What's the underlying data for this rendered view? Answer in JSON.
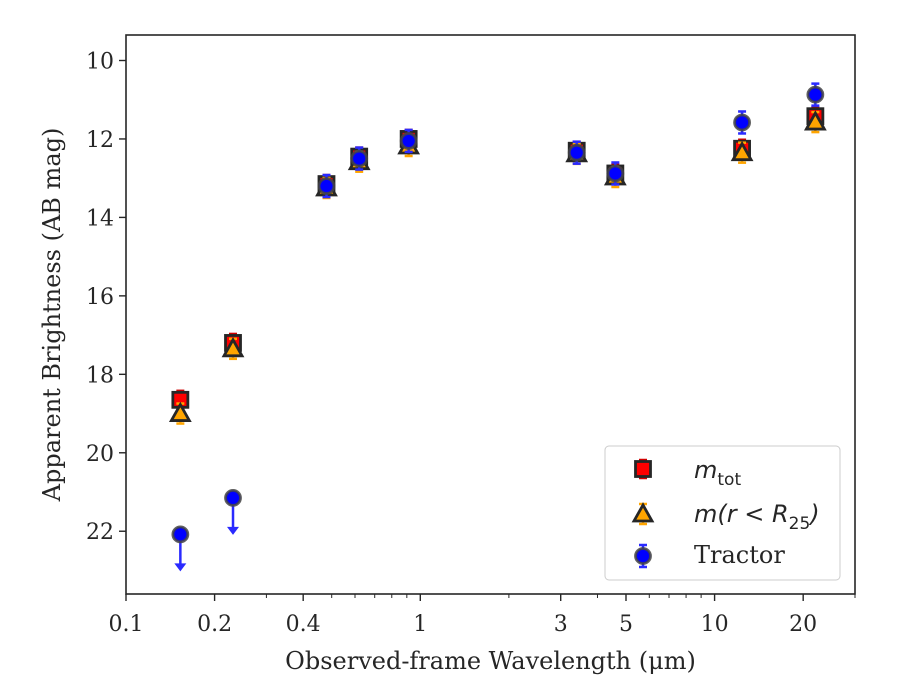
{
  "chart_data": {
    "type": "scatter",
    "xlabel": "Observed-frame Wavelength (μm)",
    "ylabel": "Apparent Brightness (AB mag)",
    "xscale": "log",
    "xlim": [
      0.1,
      30
    ],
    "ylim": [
      23.6,
      9.35
    ],
    "y_inverted": true,
    "x_ticks": [
      {
        "value": 0.1,
        "label": "0.1"
      },
      {
        "value": 0.2,
        "label": "0.2"
      },
      {
        "value": 0.4,
        "label": "0.4"
      },
      {
        "value": 1,
        "label": "1"
      },
      {
        "value": 3,
        "label": "3"
      },
      {
        "value": 5,
        "label": "5"
      },
      {
        "value": 10,
        "label": "10"
      },
      {
        "value": 20,
        "label": "20"
      }
    ],
    "x_minor_ticks": [
      0.3,
      0.5,
      0.6,
      0.7,
      0.8,
      0.9,
      2,
      4,
      6,
      7,
      8,
      9,
      30
    ],
    "y_ticks": [
      10,
      12,
      14,
      16,
      18,
      20,
      22
    ],
    "legend_position": "lower-right",
    "series": [
      {
        "name": "m_tot",
        "legend_label": {
          "main": "m",
          "sub": "tot"
        },
        "marker": "square",
        "color": "#ff0000",
        "errorbar_color": "#d00000",
        "x": [
          0.153,
          0.231,
          0.48,
          0.62,
          0.913,
          3.4,
          4.6,
          12.4,
          22.0
        ],
        "y": [
          18.65,
          17.2,
          13.15,
          12.45,
          12.0,
          12.3,
          12.88,
          12.25,
          11.42
        ]
      },
      {
        "name": "m(r<R25)",
        "legend_label": {
          "main": "m(r < R",
          "sub": "25",
          "tail": ")"
        },
        "marker": "triangle",
        "color": "#ffa500",
        "errorbar_color": "#ffa500",
        "x": [
          0.153,
          0.231,
          0.48,
          0.62,
          0.913,
          3.4,
          4.6,
          12.4,
          22.0
        ],
        "y": [
          19.0,
          17.35,
          13.25,
          12.58,
          12.18,
          12.38,
          12.97,
          12.35,
          11.57
        ]
      },
      {
        "name": "Tractor",
        "legend_label": {
          "main": "Tractor"
        },
        "marker": "circle",
        "color": "#0000ff",
        "errorbar_color": "#2a2aff",
        "upper_limit_indices": [
          0,
          1
        ],
        "x": [
          0.153,
          0.231,
          0.48,
          0.62,
          0.913,
          3.4,
          4.6,
          12.4,
          22.0
        ],
        "y": [
          22.08,
          21.15,
          13.2,
          12.5,
          12.05,
          12.35,
          12.88,
          11.58,
          10.87
        ]
      }
    ]
  }
}
